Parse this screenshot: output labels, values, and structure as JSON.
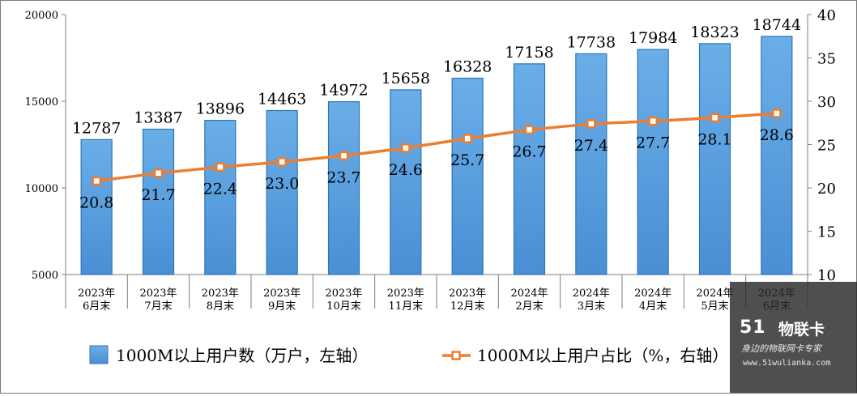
{
  "chart_data": {
    "type": "bar",
    "categories": [
      [
        "2023年",
        "6月末"
      ],
      [
        "2023年",
        "7月末"
      ],
      [
        "2023年",
        "8月末"
      ],
      [
        "2023年",
        "9月末"
      ],
      [
        "2023年",
        "10月末"
      ],
      [
        "2023年",
        "11月末"
      ],
      [
        "2023年",
        "12月末"
      ],
      [
        "2024年",
        "2月末"
      ],
      [
        "2024年",
        "3月末"
      ],
      [
        "2024年",
        "4月末"
      ],
      [
        "2024年",
        "5月末"
      ],
      [
        "2024年",
        "6月末"
      ]
    ],
    "series": [
      {
        "name": "1000M以上用户数（万户，左轴）",
        "type": "bar",
        "axis": "left",
        "values": [
          12787,
          13387,
          13896,
          14463,
          14972,
          15658,
          16328,
          17158,
          17738,
          17984,
          18323,
          18744
        ]
      },
      {
        "name": "1000M以上用户占比（%，右轴）",
        "type": "line",
        "axis": "right",
        "values": [
          20.8,
          21.7,
          22.4,
          23.0,
          23.7,
          24.6,
          25.7,
          26.7,
          27.4,
          27.7,
          28.1,
          28.6
        ],
        "labels": [
          "20.8",
          "21.7",
          "22.4",
          "23.0",
          "23.7",
          "24.6",
          "25.7",
          "26.7",
          "27.4",
          "27.7",
          "28.1",
          "28.6"
        ]
      }
    ],
    "ylim_left": [
      5000,
      20000
    ],
    "yticks_left": [
      "5000",
      "10000",
      "15000",
      "20000"
    ],
    "ylim_right": [
      10,
      40
    ],
    "yticks_right": [
      "10",
      "15",
      "20",
      "25",
      "30",
      "35",
      "40"
    ],
    "legend_placement": "bottom",
    "grid": false,
    "colors": {
      "bar": "#5b9bd5",
      "bar_light": "#8ec3f2",
      "bar_edge": "#2e75b6",
      "line": "#ed7d31"
    }
  },
  "watermark": {
    "logo": "51",
    "brand": "物联卡",
    "slogan": "身边的物联网卡专家",
    "url": "www.51wulianka.com"
  }
}
